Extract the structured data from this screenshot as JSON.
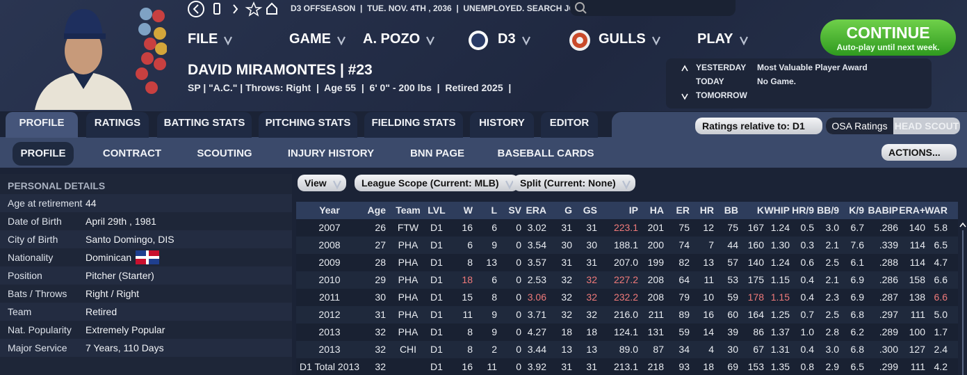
{
  "top_bar": {
    "status": [
      "D3 OFFSEASON",
      "TUE. NOV. 4TH , 2036",
      "UNEMPLOYED. SEARCH JOBS..."
    ]
  },
  "menu": [
    "FILE",
    "GAME",
    "A. POZO",
    "D3",
    "GULLS",
    "PLAY"
  ],
  "continue_button": {
    "label": "CONTINUE",
    "subtitle": "Auto-play until next week."
  },
  "player": {
    "name": "DAVID MIRAMONTES  |  #23",
    "details": "SP | \"A.C.\" | Throws: Right  |  Age 55  |  6' 0\" - 200 lbs  |  Retired 2025  |"
  },
  "schedule": [
    {
      "day": "YESTERDAY",
      "event": "Most Valuable Player Award"
    },
    {
      "day": "TODAY",
      "event": "No Game."
    },
    {
      "day": "TOMORROW"
    }
  ],
  "tabs": {
    "items": [
      "PROFILE",
      "RATINGS",
      "BATTING STATS",
      "PITCHING STATS",
      "FIELDING STATS",
      "HISTORY",
      "EDITOR"
    ],
    "active": 0
  },
  "subtabs": {
    "items": [
      "PROFILE",
      "CONTRACT",
      "SCOUTING",
      "INJURY HISTORY",
      "BNN PAGE",
      "BASEBALL CARDS"
    ],
    "active": 0
  },
  "ratings_dropdown": "Ratings relative to: D1",
  "ratings_toggle": [
    "OSA Ratings",
    "HEAD SCOUT"
  ],
  "actions_button": "ACTIONS...",
  "personal_details": {
    "title": "PERSONAL DETAILS",
    "rows": [
      [
        "Age at retirement",
        "44"
      ],
      [
        "Date of Birth",
        "April 29th , 1981"
      ],
      [
        "City of Birth",
        "Santo Domingo, DIS"
      ],
      [
        "Nationality",
        "Dominican"
      ],
      [
        "Position",
        "Pitcher (Starter)"
      ],
      [
        "Bats / Throws",
        "Right / Right"
      ],
      [
        "Team",
        "Retired"
      ],
      [
        "Nat. Popularity",
        "Extremely Popular"
      ],
      [
        "Major Service",
        "7 Years, 110 Days"
      ]
    ]
  },
  "filters": [
    "View",
    "League Scope (Current: MLB)",
    "Split (Current: None)"
  ],
  "stats_table": {
    "columns": [
      "Year",
      "Age",
      "Team",
      "LVL",
      "W",
      "L",
      "SV",
      "ERA",
      "G",
      "GS",
      "IP",
      "HA",
      "ER",
      "HR",
      "BB",
      "K",
      "WHIP",
      "HR/9",
      "BB/9",
      "K/9",
      "BABIP",
      "ERA+",
      "WAR"
    ],
    "rows": [
      [
        "2007",
        "26",
        "FTW",
        "D1",
        "16",
        "6",
        "0",
        "3.02",
        "31",
        "31",
        "223.1",
        "201",
        "75",
        "12",
        "75",
        "167",
        "1.24",
        "0.5",
        "3.0",
        "6.7",
        ".286",
        "140",
        "5.8"
      ],
      [
        "2008",
        "27",
        "PHA",
        "D1",
        "6",
        "9",
        "0",
        "3.54",
        "30",
        "30",
        "188.1",
        "200",
        "74",
        "7",
        "44",
        "160",
        "1.30",
        "0.3",
        "2.1",
        "7.6",
        ".339",
        "114",
        "6.5"
      ],
      [
        "2009",
        "28",
        "PHA",
        "D1",
        "8",
        "13",
        "0",
        "3.57",
        "31",
        "31",
        "207.0",
        "199",
        "82",
        "13",
        "57",
        "140",
        "1.24",
        "0.6",
        "2.5",
        "6.1",
        ".288",
        "114",
        "4.7"
      ],
      [
        "2010",
        "29",
        "PHA",
        "D1",
        "18",
        "6",
        "0",
        "2.53",
        "32",
        "32",
        "227.2",
        "208",
        "64",
        "11",
        "53",
        "175",
        "1.15",
        "0.4",
        "2.1",
        "6.9",
        ".286",
        "158",
        "6.6"
      ],
      [
        "2011",
        "30",
        "PHA",
        "D1",
        "15",
        "8",
        "0",
        "3.06",
        "32",
        "32",
        "232.2",
        "208",
        "79",
        "10",
        "59",
        "178",
        "1.15",
        "0.4",
        "2.3",
        "6.9",
        ".287",
        "138",
        "6.6"
      ],
      [
        "2012",
        "31",
        "PHA",
        "D1",
        "11",
        "9",
        "0",
        "3.71",
        "32",
        "32",
        "216.0",
        "211",
        "89",
        "16",
        "60",
        "164",
        "1.25",
        "0.7",
        "2.5",
        "6.8",
        ".297",
        "111",
        "5.0"
      ],
      [
        "2013",
        "32",
        "PHA",
        "D1",
        "8",
        "9",
        "0",
        "4.27",
        "18",
        "18",
        "124.1",
        "131",
        "59",
        "14",
        "39",
        "86",
        "1.37",
        "1.0",
        "2.8",
        "6.2",
        ".289",
        "100",
        "1.7"
      ],
      [
        "2013",
        "32",
        "CHI",
        "D1",
        "8",
        "2",
        "0",
        "3.44",
        "13",
        "13",
        "89.0",
        "87",
        "34",
        "4",
        "30",
        "67",
        "1.31",
        "0.4",
        "3.0",
        "6.8",
        ".300",
        "127",
        "2.4"
      ],
      [
        "D1 Total 2013",
        "32",
        null,
        "D1",
        "16",
        "11",
        "0",
        "3.92",
        "31",
        "31",
        "213.1",
        "218",
        "93",
        "18",
        "69",
        "153",
        "1.35",
        "0.8",
        "2.9",
        "6.5",
        ".299",
        "111",
        "4.2"
      ]
    ],
    "highlights": [
      [
        0,
        10
      ],
      [
        3,
        4
      ],
      [
        3,
        9
      ],
      [
        3,
        10
      ],
      [
        4,
        7
      ],
      [
        4,
        9
      ],
      [
        4,
        10
      ],
      [
        4,
        15
      ],
      [
        4,
        16
      ],
      [
        4,
        22
      ]
    ]
  }
}
